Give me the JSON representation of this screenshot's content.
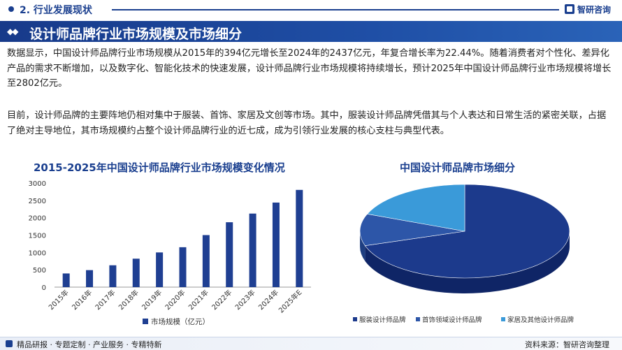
{
  "header": {
    "section_label": "2. 行业发展现状",
    "brand": "智研咨询",
    "page_title": "设计师品牌行业市场规模及市场细分"
  },
  "paragraphs": [
    "数据显示，中国设计师品牌行业市场规模从2015年的394亿元增长至2024年的2437亿元，年复合增长率为22.44%。随着消费者对个性化、差异化产品的需求不断增加，以及数字化、智能化技术的快速发展，设计师品牌行业市场规模将持续增长，预计2025年中国设计师品牌行业市场规模将增长至2802亿元。",
    "目前，设计师品牌的主要阵地仍相对集中于服装、首饰、家居及文创等市场。其中，服装设计师品牌凭借其与个人表达和日常生活的紧密关联，占据了绝对主导地位，其市场规模约占整个设计师品牌行业的近七成，成为引领行业发展的核心支柱与典型代表。"
  ],
  "colors": {
    "primary": "#1a3f8f",
    "bar": "#1f3f92",
    "pie_dark": "#1c3a8c",
    "pie_mid": "#2d56a8",
    "pie_light": "#3a9ad9"
  },
  "chart_data": [
    {
      "type": "bar",
      "title": "2015-2025年中国设计师品牌行业市场规模变化情况",
      "categories": [
        "2015年",
        "2016年",
        "2017年",
        "2018年",
        "2019年",
        "2020年",
        "2021年",
        "2022年",
        "2023年",
        "2024年",
        "2025年E"
      ],
      "series": [
        {
          "name": "市场规模（亿元）",
          "values": [
            394,
            490,
            630,
            820,
            1000,
            1150,
            1500,
            1870,
            2120,
            2437,
            2802
          ]
        }
      ],
      "ylim": [
        0,
        3000
      ],
      "yticks": [
        "0",
        "500",
        "1000",
        "1500",
        "2000",
        "2500",
        "3000"
      ],
      "legend_position": "bottom"
    },
    {
      "type": "pie",
      "title": "中国设计师品牌市场细分",
      "labels": [
        "服装设计师品牌",
        "首饰领域设计师品牌",
        "家居及其他设计师品牌"
      ],
      "values": [
        70,
        11,
        19
      ],
      "legend_position": "bottom"
    }
  ],
  "footer": {
    "slogan": "精品研报 · 专题定制 · 产业服务 · 专精特新",
    "source": "资料来源：智研咨询整理"
  }
}
